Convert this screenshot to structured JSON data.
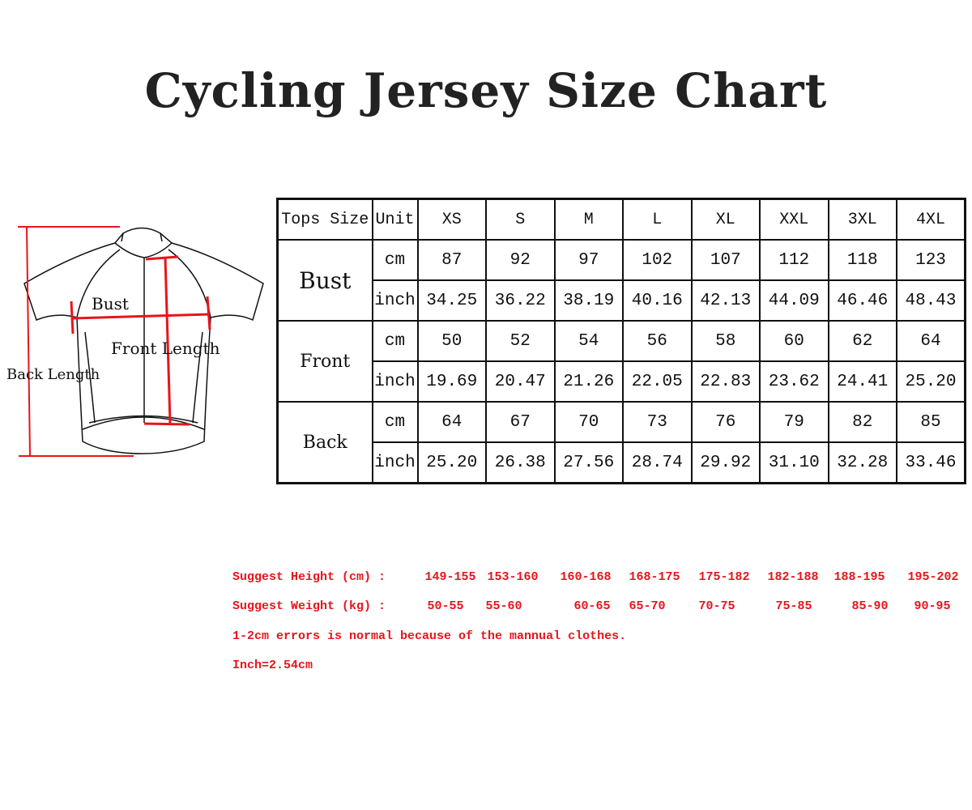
{
  "title": "Cycling Jersey Size Chart",
  "diagram": {
    "bust": "Bust",
    "front_length": "Front Length",
    "back_length": "Back Length",
    "line_color": "#e8141b"
  },
  "table": {
    "header": {
      "tops_size": "Tops Size",
      "unit": "Unit",
      "sizes": [
        "XS",
        "S",
        "M",
        "L",
        "XL",
        "XXL",
        "3XL",
        "4XL"
      ]
    },
    "groups": [
      {
        "label": "Bust",
        "rows": [
          {
            "unit": "cm",
            "values": [
              "87",
              "92",
              "97",
              "102",
              "107",
              "112",
              "118",
              "123"
            ]
          },
          {
            "unit": "inch",
            "values": [
              "34.25",
              "36.22",
              "38.19",
              "40.16",
              "42.13",
              "44.09",
              "46.46",
              "48.43"
            ]
          }
        ]
      },
      {
        "label": "Front",
        "rows": [
          {
            "unit": "cm",
            "values": [
              "50",
              "52",
              "54",
              "56",
              "58",
              "60",
              "62",
              "64"
            ]
          },
          {
            "unit": "inch",
            "values": [
              "19.69",
              "20.47",
              "21.26",
              "22.05",
              "22.83",
              "23.62",
              "24.41",
              "25.20"
            ]
          }
        ]
      },
      {
        "label": "Back",
        "rows": [
          {
            "unit": "cm",
            "values": [
              "64",
              "67",
              "70",
              "73",
              "76",
              "79",
              "82",
              "85"
            ]
          },
          {
            "unit": "inch",
            "values": [
              "25.20",
              "26.38",
              "27.56",
              "28.74",
              "29.92",
              "31.10",
              "32.28",
              "33.46"
            ]
          }
        ]
      }
    ]
  },
  "notes": {
    "height_label": "Suggest Height  (cm) :",
    "heights": [
      "149-155",
      "153-160",
      "160-168",
      "168-175",
      "175-182",
      "182-188",
      "188-195",
      "195-202"
    ],
    "weight_label": "Suggest Weight  (kg) :",
    "weights": [
      "50-55",
      "55-60",
      "60-65",
      "65-70",
      "70-75",
      "75-85",
      "85-90",
      "90-95"
    ],
    "error_note": "1-2cm errors is normal because of the mannual clothes.",
    "inch_note": "Inch=2.54cm",
    "color": "#e8141b"
  }
}
